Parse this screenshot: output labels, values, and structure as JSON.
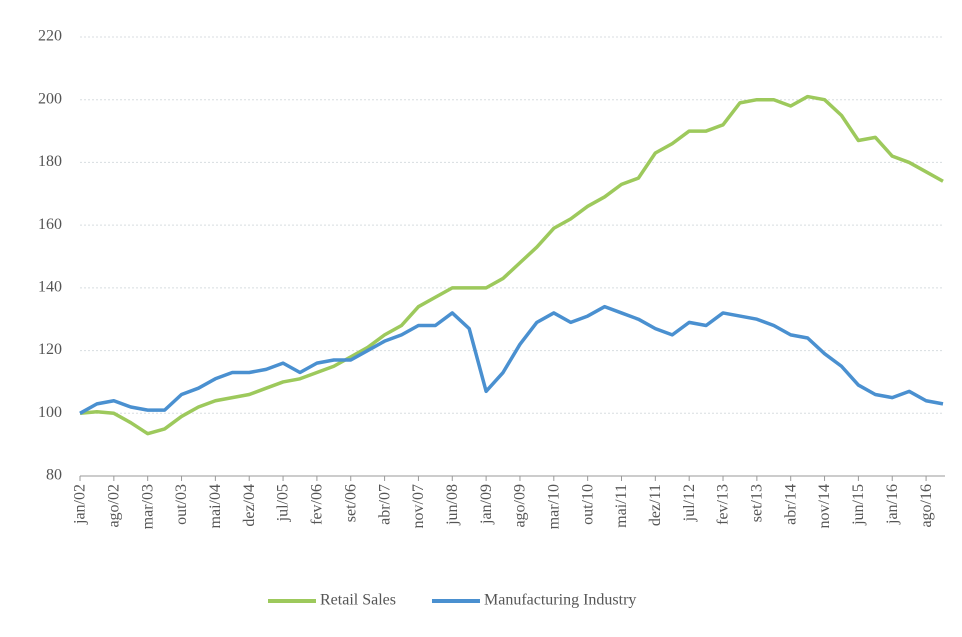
{
  "chart_data": {
    "type": "line",
    "categories": [
      "jan/02",
      null,
      "ago/02",
      null,
      "mar/03",
      null,
      "out/03",
      null,
      "mai/04",
      null,
      "dez/04",
      null,
      "jul/05",
      null,
      "fev/06",
      null,
      "set/06",
      null,
      "abr/07",
      null,
      "nov/07",
      null,
      "jun/08",
      null,
      "jan/09",
      null,
      "ago/09",
      null,
      "mar/10",
      null,
      "out/10",
      null,
      "mai/11",
      null,
      "dez/11",
      null,
      "jul/12",
      null,
      "fev/13",
      null,
      "set/13",
      null,
      "abr/14",
      null,
      "nov/14",
      null,
      "jun/15",
      null,
      "jan/16",
      null,
      "ago/16",
      null
    ],
    "series": [
      {
        "name": "Retail Sales",
        "color": "#9dc95c",
        "values": [
          100,
          100.5,
          100,
          97,
          93.5,
          95,
          99,
          102,
          104,
          105,
          106,
          108,
          110,
          111,
          113,
          115,
          118,
          121,
          125,
          128,
          134,
          137,
          140,
          140,
          140,
          143,
          148,
          153,
          159,
          162,
          166,
          169,
          173,
          175,
          183,
          186,
          190,
          190,
          192,
          199,
          200,
          200,
          198,
          201,
          200,
          195,
          187,
          188,
          182,
          180,
          177,
          174
        ]
      },
      {
        "name": "Manufacturing Industry",
        "color": "#4a90d0",
        "values": [
          100,
          103,
          104,
          102,
          101,
          101,
          106,
          108,
          111,
          113,
          113,
          114,
          116,
          113,
          116,
          117,
          117,
          120,
          123,
          125,
          128,
          128,
          132,
          127,
          107,
          113,
          122,
          129,
          132,
          129,
          131,
          134,
          132,
          130,
          127,
          125,
          129,
          128,
          132,
          131,
          130,
          128,
          125,
          124,
          119,
          115,
          109,
          106,
          105,
          107,
          104,
          103
        ]
      }
    ],
    "ylim": [
      80,
      220
    ],
    "yticks": [
      80,
      100,
      120,
      140,
      160,
      180,
      200,
      220
    ],
    "grid": true,
    "legend": "bottom"
  }
}
